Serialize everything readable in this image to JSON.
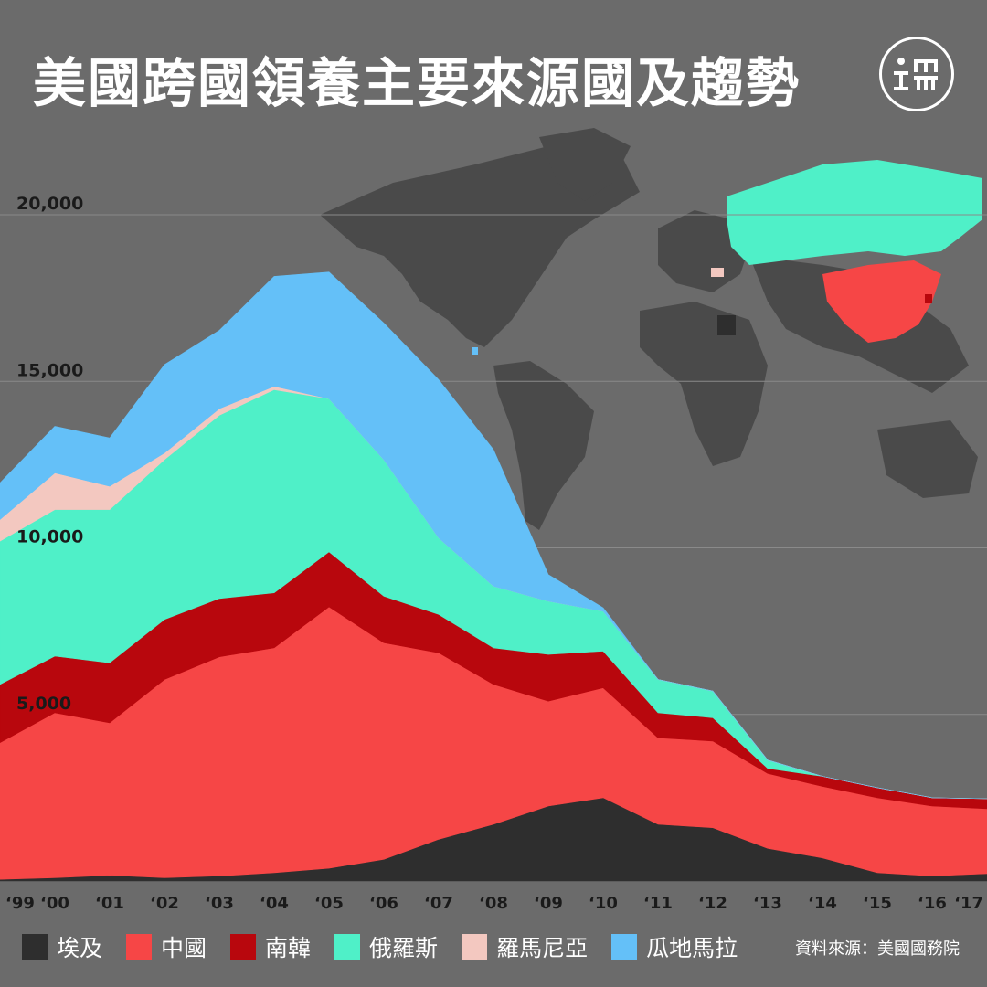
{
  "title": "美國跨國領養主要來源國及趨勢",
  "source": "資料來源：美國國務院",
  "colors": {
    "background": "#6b6b6b",
    "grid": "#8a8a8a",
    "map_land": "#4a4a4a"
  },
  "chart_data": {
    "type": "area",
    "stacked": true,
    "x": [
      "‘99",
      "‘00",
      "‘01",
      "‘02",
      "‘03",
      "‘04",
      "‘05",
      "‘06",
      "‘07",
      "‘08",
      "‘09",
      "‘10",
      "‘11",
      "‘12",
      "‘13",
      "‘14",
      "‘15",
      "‘16",
      "‘17"
    ],
    "ylim": [
      0,
      20000
    ],
    "yticks": [
      5000,
      10000,
      15000,
      20000
    ],
    "ytick_labels": [
      "5,000",
      "10,000",
      "15,000",
      "20,000"
    ],
    "grid": true,
    "legend_position": "bottom",
    "series": [
      {
        "name": "埃及",
        "color": "#2e2e2e",
        "values": [
          50,
          100,
          170,
          100,
          150,
          250,
          380,
          650,
          1250,
          1700,
          2250,
          2500,
          1700,
          1600,
          980,
          690,
          250,
          150,
          220
        ]
      },
      {
        "name": "中國",
        "color": "#f64646",
        "values": [
          4100,
          4950,
          4580,
          5950,
          6580,
          6750,
          7850,
          6500,
          5600,
          4200,
          3150,
          3300,
          2600,
          2600,
          2250,
          2150,
          2250,
          2100,
          1950
        ]
      },
      {
        "name": "南韓",
        "color": "#b8070d",
        "values": [
          1750,
          1700,
          1800,
          1800,
          1750,
          1650,
          1650,
          1400,
          1150,
          1100,
          1400,
          1100,
          750,
          700,
          150,
          300,
          300,
          250,
          300
        ]
      },
      {
        "name": "俄羅斯",
        "color": "#4ff0c8",
        "values": [
          4300,
          4400,
          4600,
          4800,
          5500,
          6100,
          4600,
          4100,
          2300,
          1850,
          1600,
          1200,
          1000,
          800,
          250,
          0,
          0,
          0,
          0
        ]
      },
      {
        "name": "羅馬尼亞",
        "color": "#f3c8c0",
        "values": [
          650,
          1100,
          700,
          200,
          200,
          100,
          0,
          0,
          0,
          0,
          0,
          0,
          0,
          0,
          0,
          0,
          0,
          0,
          0
        ]
      },
      {
        "name": "瓜地馬拉",
        "color": "#64c0f8",
        "values": [
          1100,
          1400,
          1450,
          2650,
          2350,
          3300,
          3800,
          4100,
          4750,
          4100,
          800,
          100,
          0,
          0,
          0,
          0,
          0,
          0,
          0
        ]
      }
    ]
  }
}
